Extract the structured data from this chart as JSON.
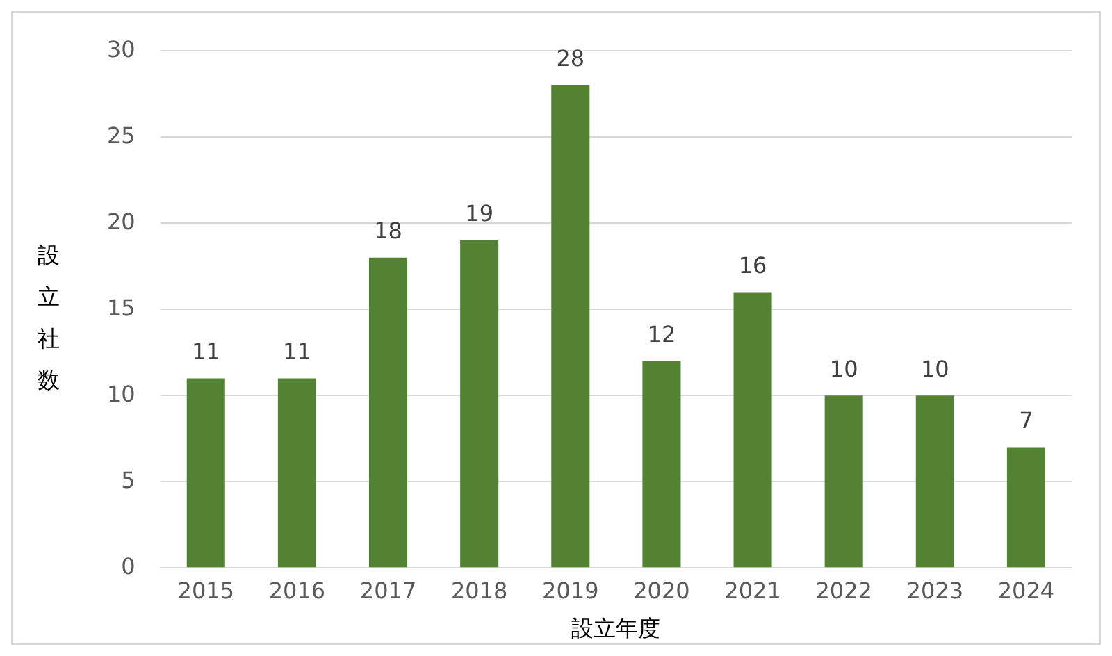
{
  "chart_data": {
    "type": "bar",
    "xlabel": "設立年度",
    "ylabel": "設立社数",
    "categories": [
      "2015",
      "2016",
      "2017",
      "2018",
      "2019",
      "2020",
      "2021",
      "2022",
      "2023",
      "2024"
    ],
    "values": [
      11,
      11,
      18,
      19,
      28,
      12,
      16,
      10,
      10,
      7
    ],
    "color": "#548235",
    "ylim": [
      0,
      30
    ],
    "yticks": [
      0,
      5,
      10,
      15,
      20,
      25,
      30
    ],
    "grid": "y",
    "data_labels": true,
    "legend": false
  }
}
